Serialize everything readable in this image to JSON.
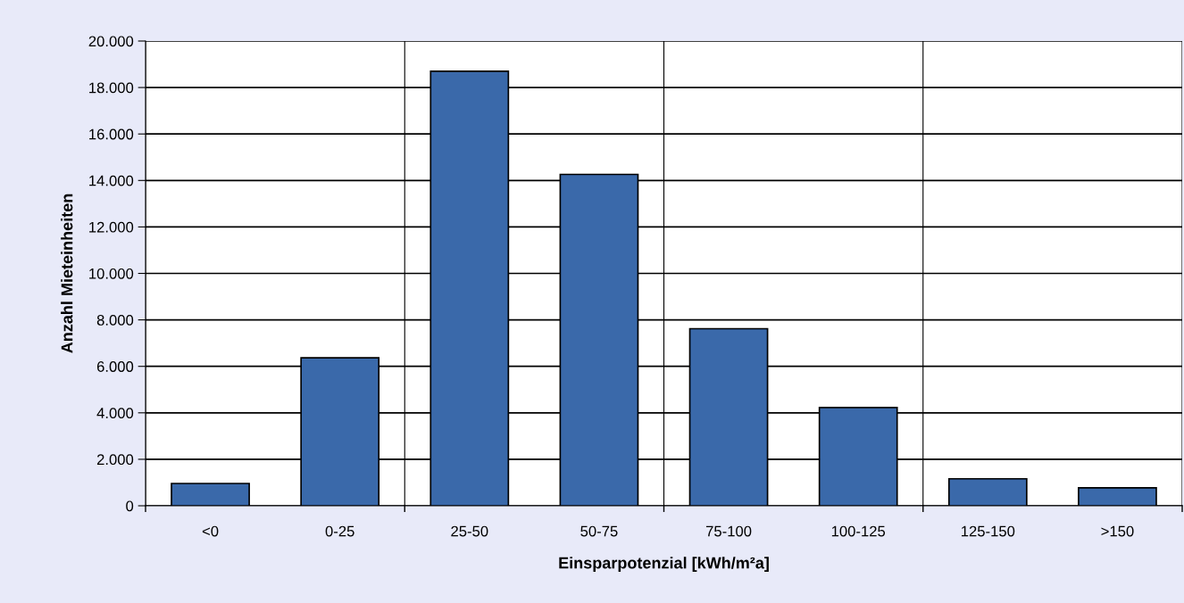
{
  "chart_data": {
    "type": "bar",
    "xlabel": "Einsparpotenzial [kWh/m²a]",
    "ylabel": "Anzahl Mieteinheiten",
    "categories": [
      "<0",
      "0-25",
      "25-50",
      "50-75",
      "75-100",
      "100-125",
      "125-150",
      ">150"
    ],
    "values": [
      960,
      6370,
      18700,
      14260,
      7620,
      4230,
      1160,
      770
    ],
    "color": "#3a69aa",
    "ylim": [
      0,
      20000
    ],
    "yticks": [
      {
        "value": 0,
        "label": "0"
      },
      {
        "value": 2000,
        "label": "2.000"
      },
      {
        "value": 4000,
        "label": "4.000"
      },
      {
        "value": 6000,
        "label": "6.000"
      },
      {
        "value": 8000,
        "label": "8.000"
      },
      {
        "value": 10000,
        "label": "10.000"
      },
      {
        "value": 12000,
        "label": "12.000"
      },
      {
        "value": 14000,
        "label": "14.000"
      },
      {
        "value": 16000,
        "label": "16.000"
      },
      {
        "value": 18000,
        "label": "18.000"
      },
      {
        "value": 20000,
        "label": "20.000"
      }
    ],
    "grid": true,
    "legend": false
  }
}
